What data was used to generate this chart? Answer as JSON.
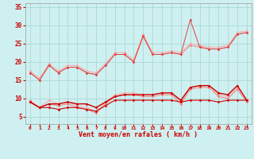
{
  "x": [
    0,
    1,
    2,
    3,
    4,
    5,
    6,
    7,
    8,
    9,
    10,
    11,
    12,
    13,
    14,
    15,
    16,
    17,
    18,
    19,
    20,
    21,
    22,
    23
  ],
  "series": [
    {
      "name": "upper_lightest",
      "color": "#f5aaaa",
      "lw": 0.7,
      "marker": "D",
      "ms": 1.5,
      "values": [
        17.5,
        15.5,
        19.5,
        17.5,
        19.0,
        19.0,
        17.5,
        17.0,
        19.5,
        22.5,
        22.5,
        20.5,
        27.5,
        22.5,
        22.5,
        23.0,
        22.5,
        25.0,
        24.5,
        24.0,
        24.0,
        24.5,
        28.0,
        28.5
      ]
    },
    {
      "name": "upper_light",
      "color": "#f08080",
      "lw": 0.7,
      "marker": "D",
      "ms": 1.5,
      "values": [
        17.0,
        15.0,
        19.0,
        17.0,
        18.5,
        18.5,
        17.0,
        16.5,
        19.0,
        22.0,
        22.0,
        20.0,
        27.0,
        22.0,
        22.0,
        22.5,
        22.0,
        24.5,
        24.0,
        23.5,
        23.5,
        24.0,
        27.5,
        28.0
      ]
    },
    {
      "name": "upper_spike",
      "color": "#dd4444",
      "lw": 0.7,
      "marker": "D",
      "ms": 1.5,
      "values": [
        17.0,
        15.0,
        19.0,
        17.0,
        18.5,
        18.5,
        17.0,
        16.5,
        19.0,
        22.0,
        22.0,
        20.0,
        27.0,
        22.0,
        22.0,
        22.5,
        22.0,
        31.5,
        24.0,
        23.5,
        23.5,
        24.0,
        27.5,
        28.0
      ]
    },
    {
      "name": "lower_lightest",
      "color": "#f5aaaa",
      "lw": 0.7,
      "marker": "D",
      "ms": 1.5,
      "values": [
        9.5,
        7.5,
        9.5,
        8.5,
        9.0,
        8.0,
        7.5,
        6.5,
        9.0,
        11.0,
        11.5,
        11.5,
        11.0,
        11.0,
        11.5,
        11.5,
        9.0,
        13.0,
        13.5,
        13.5,
        11.0,
        10.5,
        13.0,
        9.5
      ]
    },
    {
      "name": "lower_light",
      "color": "#f08080",
      "lw": 0.7,
      "marker": "D",
      "ms": 1.5,
      "values": [
        9.0,
        7.5,
        8.5,
        8.0,
        8.5,
        7.5,
        7.0,
        6.0,
        8.5,
        10.5,
        11.0,
        11.0,
        10.5,
        10.5,
        11.0,
        11.0,
        8.5,
        12.5,
        13.0,
        13.0,
        10.5,
        10.0,
        12.5,
        9.0
      ]
    },
    {
      "name": "lower_red",
      "color": "#cc0000",
      "lw": 1.0,
      "marker": "D",
      "ms": 1.5,
      "values": [
        9.0,
        7.5,
        8.5,
        8.5,
        9.0,
        8.5,
        8.5,
        7.5,
        9.0,
        10.5,
        11.0,
        11.0,
        11.0,
        11.0,
        11.5,
        11.5,
        9.5,
        13.0,
        13.5,
        13.5,
        11.5,
        11.0,
        13.5,
        9.5
      ]
    },
    {
      "name": "bottom_flat",
      "color": "#cc0000",
      "lw": 0.8,
      "marker": "D",
      "ms": 1.5,
      "values": [
        9.0,
        7.5,
        7.5,
        7.0,
        7.5,
        7.5,
        7.0,
        6.5,
        8.0,
        9.5,
        9.5,
        9.5,
        9.5,
        9.5,
        9.5,
        9.5,
        9.0,
        9.5,
        9.5,
        9.5,
        9.0,
        9.5,
        9.5,
        9.5
      ]
    }
  ],
  "xlim": [
    -0.5,
    23.5
  ],
  "ylim": [
    3,
    36
  ],
  "yticks": [
    5,
    10,
    15,
    20,
    25,
    30,
    35
  ],
  "xticks": [
    0,
    1,
    2,
    3,
    4,
    5,
    6,
    7,
    8,
    9,
    10,
    11,
    12,
    13,
    14,
    15,
    16,
    17,
    18,
    19,
    20,
    21,
    22,
    23
  ],
  "xlabel": "Vent moyen/en rafales ( km/h )",
  "bg_color": "#cff0f0",
  "grid_color": "#aad8d8",
  "tick_color": "#cc0000",
  "label_color": "#cc0000"
}
